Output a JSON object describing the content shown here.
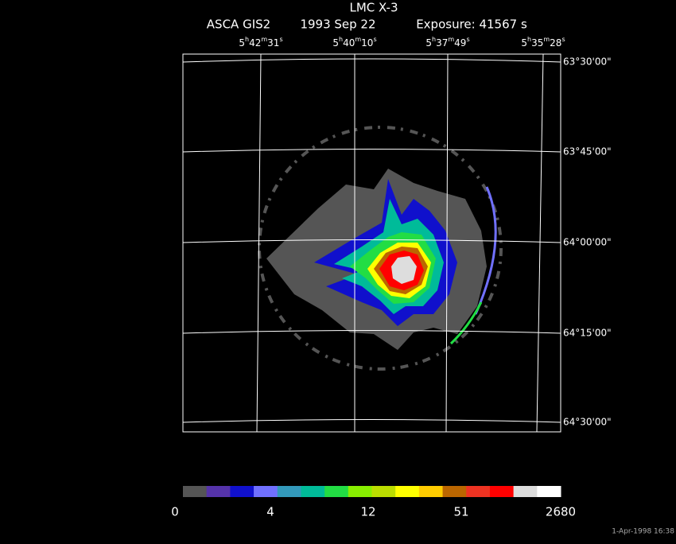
{
  "header": {
    "title": "LMC X-3",
    "instrument": "ASCA GIS2",
    "date": "1993 Sep 22",
    "exposure": "Exposure: 41567 s"
  },
  "ra_labels": [
    "5h42m31s",
    "5h40m10s",
    "5h37m49s",
    "5h35m28s"
  ],
  "dec_labels": [
    "63°30'00\"",
    "63°45'00\"",
    "64°00'00\"",
    "64°15'00\"",
    "64°30'00\""
  ],
  "colorbar": {
    "labels": [
      "0",
      "4",
      "12",
      "51",
      "2680"
    ],
    "colors": [
      "#555555",
      "#5533aa",
      "#1010cc",
      "#7070ff",
      "#3399bb",
      "#00bb99",
      "#22dd44",
      "#88ee00",
      "#bbdd00",
      "#ffff00",
      "#ffcc00",
      "#bb6600",
      "#ee3322",
      "#ff0000",
      "#dddddd",
      "#ffffff"
    ]
  },
  "timestamp": "1-Apr-1998 16:38"
}
